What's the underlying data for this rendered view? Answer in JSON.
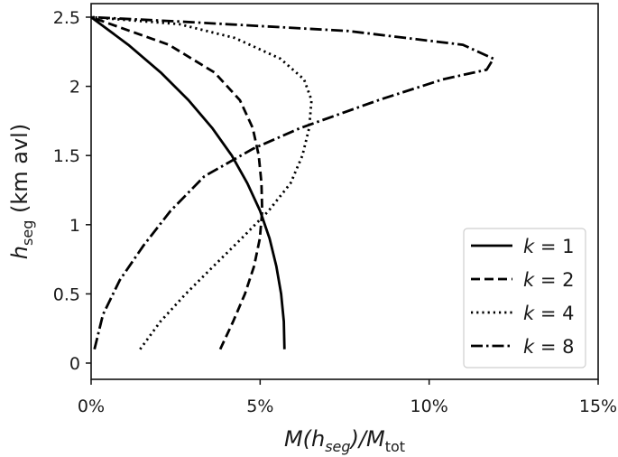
{
  "chart_data": {
    "type": "line",
    "xlabel": {
      "main": "M(h",
      "sub1": "seg",
      "mid": ")/M",
      "sub2": "tot"
    },
    "ylabel": {
      "main": "h",
      "sub": "seg",
      "rest": " (km avl)"
    },
    "xlim": [
      0,
      15
    ],
    "ylim": [
      0,
      2.5
    ],
    "x_ticks": [
      {
        "value": 0,
        "label": "0%"
      },
      {
        "value": 5,
        "label": "5%"
      },
      {
        "value": 10,
        "label": "10%"
      },
      {
        "value": 15,
        "label": "15%"
      }
    ],
    "y_ticks": [
      {
        "value": 0,
        "label": "0"
      },
      {
        "value": 0.5,
        "label": "0.5"
      },
      {
        "value": 1,
        "label": "1"
      },
      {
        "value": 1.5,
        "label": "1.5"
      },
      {
        "value": 2,
        "label": "2"
      },
      {
        "value": 2.5,
        "label": "2.5"
      }
    ],
    "grid": false,
    "legend_position": "bottom-right",
    "series": [
      {
        "name": "k = 1",
        "k": "k",
        "eq": " = 1",
        "style": "solid",
        "points": [
          [
            5.72,
            0.1
          ],
          [
            5.7,
            0.3
          ],
          [
            5.62,
            0.5
          ],
          [
            5.48,
            0.7
          ],
          [
            5.28,
            0.9
          ],
          [
            5.0,
            1.1
          ],
          [
            4.62,
            1.3
          ],
          [
            4.16,
            1.5
          ],
          [
            3.58,
            1.7
          ],
          [
            2.88,
            1.9
          ],
          [
            2.06,
            2.1
          ],
          [
            1.1,
            2.3
          ],
          [
            0.0,
            2.5
          ]
        ]
      },
      {
        "name": "k = 2",
        "k": "k",
        "eq": " = 2",
        "style": "dashed",
        "points": [
          [
            3.82,
            0.1
          ],
          [
            4.2,
            0.3
          ],
          [
            4.55,
            0.5
          ],
          [
            4.82,
            0.7
          ],
          [
            4.99,
            0.9
          ],
          [
            5.06,
            1.1
          ],
          [
            5.04,
            1.3
          ],
          [
            4.96,
            1.5
          ],
          [
            4.78,
            1.7
          ],
          [
            4.4,
            1.9
          ],
          [
            3.65,
            2.1
          ],
          [
            2.3,
            2.3
          ],
          [
            0.0,
            2.5
          ]
        ]
      },
      {
        "name": "k = 4",
        "k": "k",
        "eq": " = 4",
        "style": "dotted",
        "points": [
          [
            1.45,
            0.1
          ],
          [
            2.05,
            0.3
          ],
          [
            2.8,
            0.5
          ],
          [
            3.62,
            0.7
          ],
          [
            4.45,
            0.9
          ],
          [
            5.25,
            1.1
          ],
          [
            5.9,
            1.3
          ],
          [
            6.25,
            1.5
          ],
          [
            6.45,
            1.7
          ],
          [
            6.52,
            1.9
          ],
          [
            6.3,
            2.05
          ],
          [
            5.6,
            2.2
          ],
          [
            4.25,
            2.35
          ],
          [
            2.6,
            2.45
          ],
          [
            0.0,
            2.5
          ]
        ]
      },
      {
        "name": "k = 8",
        "k": "k",
        "eq": " = 8",
        "style": "dashdot",
        "points": [
          [
            0.1,
            0.1
          ],
          [
            0.35,
            0.35
          ],
          [
            0.85,
            0.6
          ],
          [
            1.55,
            0.85
          ],
          [
            2.35,
            1.1
          ],
          [
            3.35,
            1.35
          ],
          [
            4.8,
            1.55
          ],
          [
            6.2,
            1.7
          ],
          [
            8.5,
            1.9
          ],
          [
            10.4,
            2.05
          ],
          [
            11.7,
            2.12
          ],
          [
            11.9,
            2.2
          ],
          [
            11.0,
            2.3
          ],
          [
            7.6,
            2.4
          ],
          [
            2.5,
            2.47
          ],
          [
            0.0,
            2.5
          ]
        ]
      }
    ]
  }
}
